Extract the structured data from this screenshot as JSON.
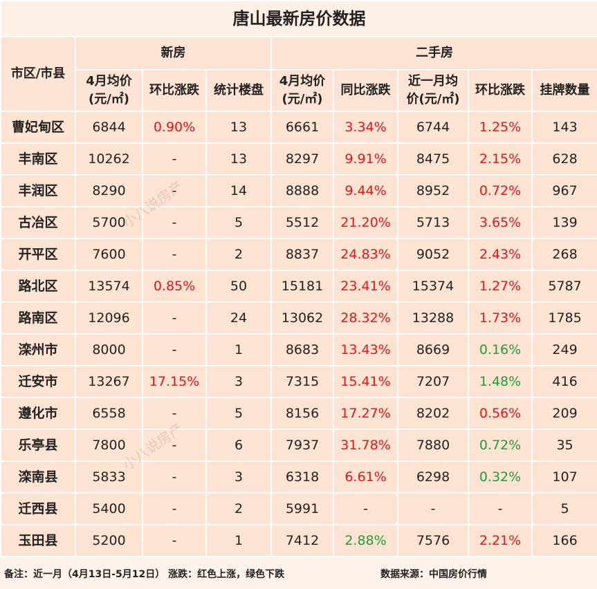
{
  "title": "唐山最新房价数据",
  "header": {
    "district": "市区/市县",
    "groups": [
      "新房",
      "二手房"
    ],
    "columns": [
      "4月均价\n(元/㎡)",
      "环比涨跌",
      "统计楼盘",
      "4月均价\n(元/㎡)",
      "同比涨跌",
      "近一月均\n价(元/㎡)",
      "环比涨跌",
      "挂牌数量"
    ]
  },
  "colors": {
    "up": "#e8141a",
    "down": "#1e9c3c",
    "plain": "#222222"
  },
  "rows": [
    {
      "district": "曹妃甸区",
      "cells": [
        "6844",
        "0.90%",
        "13",
        "6661",
        "3.34%",
        "6744",
        "1.25%",
        "143"
      ],
      "trend": [
        "plain",
        "up",
        "plain",
        "plain",
        "up",
        "plain",
        "up",
        "plain"
      ]
    },
    {
      "district": "丰南区",
      "cells": [
        "10262",
        "-",
        "13",
        "8297",
        "9.91%",
        "8475",
        "2.15%",
        "628"
      ],
      "trend": [
        "plain",
        "plain",
        "plain",
        "plain",
        "up",
        "plain",
        "up",
        "plain"
      ]
    },
    {
      "district": "丰润区",
      "cells": [
        "8290",
        "-",
        "14",
        "8888",
        "9.44%",
        "8952",
        "0.72%",
        "967"
      ],
      "trend": [
        "plain",
        "plain",
        "plain",
        "plain",
        "up",
        "plain",
        "up",
        "plain"
      ]
    },
    {
      "district": "古冶区",
      "cells": [
        "5700",
        "-",
        "5",
        "5512",
        "21.20%",
        "5713",
        "3.65%",
        "139"
      ],
      "trend": [
        "plain",
        "plain",
        "plain",
        "plain",
        "up",
        "plain",
        "up",
        "plain"
      ]
    },
    {
      "district": "开平区",
      "cells": [
        "7600",
        "-",
        "2",
        "8837",
        "24.83%",
        "9052",
        "2.43%",
        "268"
      ],
      "trend": [
        "plain",
        "plain",
        "plain",
        "plain",
        "up",
        "plain",
        "up",
        "plain"
      ]
    },
    {
      "district": "路北区",
      "cells": [
        "13574",
        "0.85%",
        "50",
        "15181",
        "23.41%",
        "15374",
        "1.27%",
        "5787"
      ],
      "trend": [
        "plain",
        "up",
        "plain",
        "plain",
        "up",
        "plain",
        "up",
        "plain"
      ]
    },
    {
      "district": "路南区",
      "cells": [
        "12096",
        "-",
        "24",
        "13062",
        "28.32%",
        "13288",
        "1.73%",
        "1785"
      ],
      "trend": [
        "plain",
        "plain",
        "plain",
        "plain",
        "up",
        "plain",
        "up",
        "plain"
      ]
    },
    {
      "district": "滦州市",
      "cells": [
        "8000",
        "-",
        "1",
        "8683",
        "13.43%",
        "8669",
        "0.16%",
        "249"
      ],
      "trend": [
        "plain",
        "plain",
        "plain",
        "plain",
        "up",
        "plain",
        "down",
        "plain"
      ]
    },
    {
      "district": "迁安市",
      "cells": [
        "13267",
        "17.15%",
        "3",
        "7315",
        "15.41%",
        "7207",
        "1.48%",
        "416"
      ],
      "trend": [
        "plain",
        "up",
        "plain",
        "plain",
        "up",
        "plain",
        "down",
        "plain"
      ]
    },
    {
      "district": "遵化市",
      "cells": [
        "6558",
        "-",
        "5",
        "8156",
        "17.27%",
        "8202",
        "0.56%",
        "209"
      ],
      "trend": [
        "plain",
        "plain",
        "plain",
        "plain",
        "up",
        "plain",
        "up",
        "plain"
      ]
    },
    {
      "district": "乐亭县",
      "cells": [
        "7800",
        "-",
        "6",
        "7937",
        "31.78%",
        "7880",
        "0.72%",
        "35"
      ],
      "trend": [
        "plain",
        "plain",
        "plain",
        "plain",
        "up",
        "plain",
        "down",
        "plain"
      ]
    },
    {
      "district": "滦南县",
      "cells": [
        "5833",
        "-",
        "3",
        "6318",
        "6.61%",
        "6298",
        "0.32%",
        "107"
      ],
      "trend": [
        "plain",
        "plain",
        "plain",
        "plain",
        "up",
        "plain",
        "down",
        "plain"
      ]
    },
    {
      "district": "迁西县",
      "cells": [
        "5400",
        "-",
        "2",
        "5991",
        "-",
        "-",
        "-",
        "5"
      ],
      "trend": [
        "plain",
        "plain",
        "plain",
        "plain",
        "plain",
        "plain",
        "plain",
        "plain"
      ]
    },
    {
      "district": "玉田县",
      "cells": [
        "5200",
        "-",
        "1",
        "7412",
        "2.88%",
        "7576",
        "2.21%",
        "166"
      ],
      "trend": [
        "plain",
        "plain",
        "plain",
        "plain",
        "down",
        "plain",
        "up",
        "plain"
      ]
    }
  ],
  "footer": {
    "note": "备注：近一月（4月13日-5月12日） 涨跌：红色上涨，绿色下跌",
    "source": "数据来源：中国房价行情"
  },
  "watermark": "小八说房产"
}
